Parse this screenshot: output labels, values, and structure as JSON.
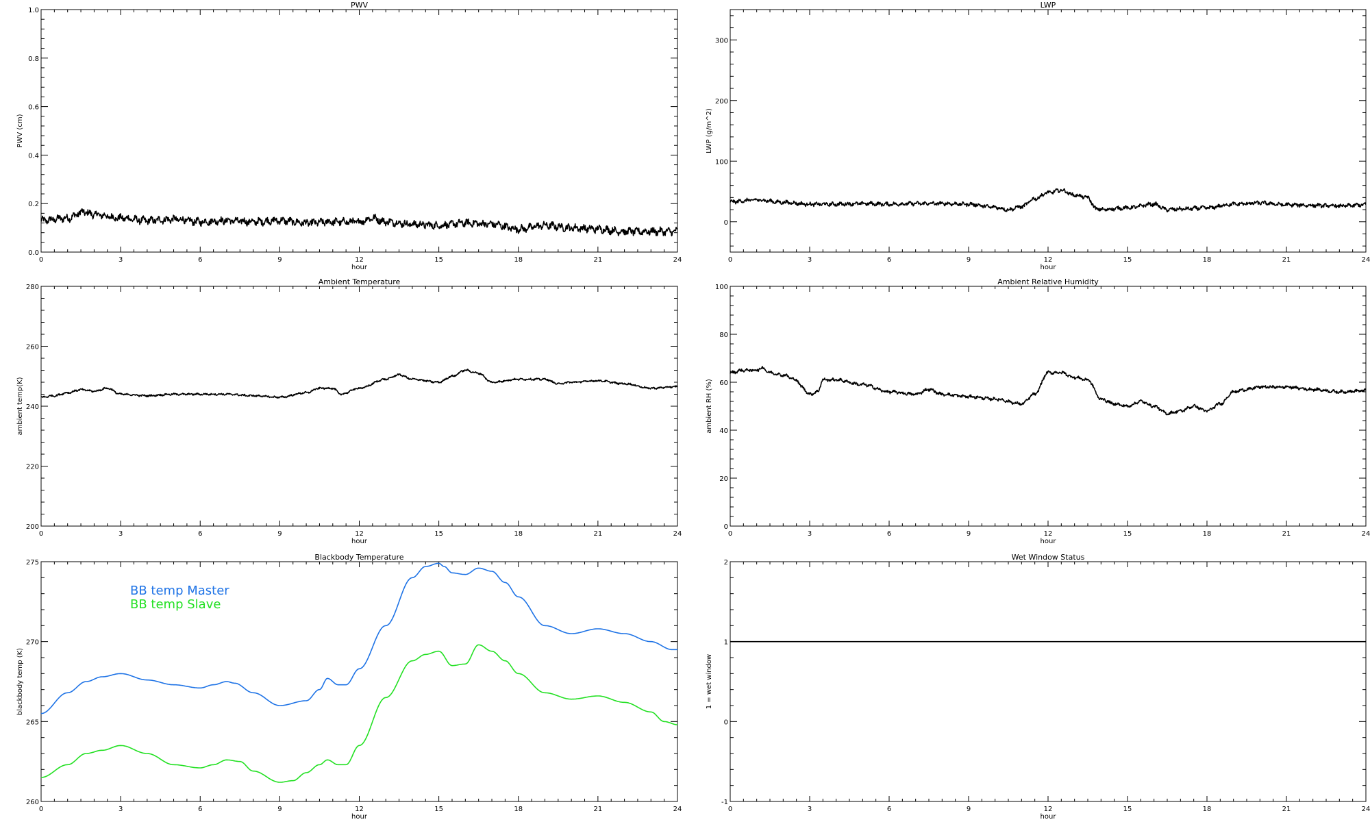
{
  "colors": {
    "axis": "#000000",
    "blue": "#1e73e6",
    "green": "#22e022"
  },
  "chart_data": [
    {
      "type": "line",
      "title": "PWV",
      "xlabel": "hour",
      "ylabel": "PWV (cm)",
      "xlim": [
        0,
        24
      ],
      "ylim": [
        0.0,
        1.0
      ],
      "xticks": [
        "0",
        "3",
        "6",
        "9",
        "12",
        "15",
        "18",
        "21",
        "24"
      ],
      "yticks": [
        "0.0",
        "0.2",
        "0.4",
        "0.6",
        "0.8",
        "1.0"
      ],
      "series": [
        {
          "color": "#000000",
          "noise": 0.012,
          "x": [
            0,
            1,
            1.6,
            2,
            3,
            4,
            5,
            6,
            7,
            8,
            9,
            10,
            11,
            12,
            12.5,
            13,
            14,
            15,
            16,
            17,
            18,
            19,
            20,
            21,
            22,
            23,
            24
          ],
          "y": [
            0.13,
            0.14,
            0.165,
            0.155,
            0.14,
            0.13,
            0.135,
            0.125,
            0.13,
            0.125,
            0.13,
            0.12,
            0.125,
            0.125,
            0.14,
            0.125,
            0.115,
            0.11,
            0.12,
            0.115,
            0.095,
            0.11,
            0.1,
            0.095,
            0.085,
            0.085,
            0.085
          ]
        }
      ]
    },
    {
      "type": "line",
      "title": "LWP",
      "xlabel": "hour",
      "ylabel": "LWP (g/m^2)",
      "xlim": [
        0,
        24
      ],
      "ylim": [
        -50,
        350
      ],
      "xticks": [
        "0",
        "3",
        "6",
        "9",
        "12",
        "15",
        "18",
        "21",
        "24"
      ],
      "yticks": [
        "0",
        "100",
        "200",
        "300"
      ],
      "series": [
        {
          "color": "#000000",
          "noise": 2.5,
          "x": [
            0,
            1,
            2,
            3,
            4,
            5,
            6,
            7,
            8,
            9,
            10,
            10.5,
            11,
            11.5,
            12,
            12.5,
            13,
            13.5,
            13.8,
            14,
            15,
            16,
            16.5,
            17,
            18,
            19,
            20,
            21,
            22,
            23,
            24
          ],
          "y": [
            33,
            36,
            32,
            29,
            29,
            30,
            29,
            30,
            30,
            29,
            24,
            20,
            25,
            38,
            48,
            52,
            44,
            40,
            22,
            20,
            23,
            29,
            20,
            21,
            23,
            29,
            31,
            28,
            27,
            26,
            28
          ]
        }
      ]
    },
    {
      "type": "line",
      "title": "Ambient Temperature",
      "xlabel": "hour",
      "ylabel": "ambient temp(K)",
      "xlim": [
        0,
        24
      ],
      "ylim": [
        200,
        280
      ],
      "xticks": [
        "0",
        "3",
        "6",
        "9",
        "12",
        "15",
        "18",
        "21",
        "24"
      ],
      "yticks": [
        "200",
        "220",
        "240",
        "260",
        "280"
      ],
      "series": [
        {
          "color": "#000000",
          "noise": 0.25,
          "x": [
            0,
            0.5,
            1,
            1.5,
            2,
            2.5,
            3,
            4,
            5,
            6,
            7,
            8,
            9,
            10,
            10.5,
            11,
            11.3,
            12,
            13,
            13.5,
            14,
            15,
            15.5,
            16,
            16.5,
            17,
            18,
            19,
            19.5,
            20,
            21,
            22,
            23,
            24
          ],
          "y": [
            243,
            243.5,
            244.5,
            245.5,
            245,
            246,
            244,
            243.5,
            244,
            244,
            244,
            243.5,
            243,
            244.5,
            246,
            246,
            244,
            246,
            249,
            250.5,
            249,
            248,
            250,
            252,
            251,
            248,
            249,
            249,
            247.5,
            248,
            248.5,
            247.5,
            246,
            246.5
          ]
        }
      ]
    },
    {
      "type": "line",
      "title": "Ambient Relative Humidity",
      "xlabel": "hour",
      "ylabel": "ambient RH (%)",
      "xlim": [
        0,
        24
      ],
      "ylim": [
        0,
        100
      ],
      "xticks": [
        "0",
        "3",
        "6",
        "9",
        "12",
        "15",
        "18",
        "21",
        "24"
      ],
      "yticks": [
        "0",
        "20",
        "40",
        "60",
        "80",
        "100"
      ],
      "series": [
        {
          "color": "#000000",
          "noise": 0.5,
          "x": [
            0,
            0.5,
            1,
            1.2,
            1.5,
            2,
            2.5,
            2.7,
            3,
            3.3,
            3.5,
            4,
            5,
            6,
            7,
            7.5,
            8,
            9,
            10,
            11,
            11.5,
            12,
            12.5,
            13,
            13.5,
            14,
            14.5,
            15,
            15.5,
            16,
            16.5,
            17,
            17.5,
            18,
            18.5,
            19,
            19.5,
            20,
            21,
            22,
            23,
            24
          ],
          "y": [
            64,
            65,
            65,
            66,
            64,
            63,
            61,
            58,
            55,
            56,
            61,
            61,
            59,
            56,
            55,
            57,
            55,
            54,
            53,
            51,
            55,
            64,
            64,
            62,
            61,
            53,
            51,
            50,
            52,
            50,
            47,
            48,
            50,
            48,
            51,
            56,
            57,
            58,
            58,
            57,
            56,
            56.5
          ]
        }
      ]
    },
    {
      "type": "line",
      "title": "Blackbody Temperature",
      "xlabel": "hour",
      "ylabel": "blackbody temp (K)",
      "xlim": [
        0,
        24
      ],
      "ylim": [
        260,
        275
      ],
      "xticks": [
        "0",
        "3",
        "6",
        "9",
        "12",
        "15",
        "18",
        "21",
        "24"
      ],
      "yticks": [
        "260",
        "265",
        "270",
        "275"
      ],
      "series": [
        {
          "name": "BB temp Master",
          "color": "#1e73e6",
          "noise": 0,
          "x": [
            0,
            1,
            1.7,
            2.3,
            3,
            4,
            5,
            6,
            6.5,
            7,
            7.3,
            8,
            9,
            10,
            10.5,
            10.8,
            11.2,
            11.5,
            12,
            13,
            14,
            14.5,
            15,
            15.2,
            15.5,
            16,
            16.5,
            17,
            17.5,
            18,
            19,
            20,
            21,
            22,
            23,
            23.8,
            24
          ],
          "y": [
            265.5,
            266.8,
            267.5,
            267.8,
            268,
            267.6,
            267.3,
            267.1,
            267.3,
            267.5,
            267.4,
            266.8,
            266,
            266.3,
            267,
            267.7,
            267.3,
            267.3,
            268.3,
            271,
            274,
            274.7,
            274.9,
            274.7,
            274.3,
            274.2,
            274.6,
            274.4,
            273.7,
            272.8,
            271,
            270.5,
            270.8,
            270.5,
            270,
            269.5,
            269.5
          ]
        },
        {
          "name": "BB temp Slave",
          "color": "#22e022",
          "noise": 0,
          "x": [
            0,
            1,
            1.7,
            2.3,
            3,
            4,
            5,
            6,
            6.5,
            7,
            7.5,
            8,
            9,
            9.5,
            10,
            10.5,
            10.8,
            11.2,
            11.5,
            12,
            13,
            14,
            14.5,
            15,
            15.5,
            16,
            16.5,
            17,
            17.5,
            18,
            19,
            20,
            21,
            22,
            23,
            23.5,
            24
          ],
          "y": [
            261.5,
            262.3,
            263,
            263.2,
            263.5,
            263,
            262.3,
            262.1,
            262.3,
            262.6,
            262.5,
            261.9,
            261.2,
            261.3,
            261.8,
            262.3,
            262.6,
            262.3,
            262.3,
            263.5,
            266.5,
            268.8,
            269.2,
            269.4,
            268.5,
            268.6,
            269.8,
            269.4,
            268.8,
            268,
            266.8,
            266.4,
            266.6,
            266.2,
            265.6,
            265,
            264.8
          ]
        }
      ]
    },
    {
      "type": "line",
      "title": "Wet Window Status",
      "xlabel": "hour",
      "ylabel": "1 = wet window",
      "xlim": [
        0,
        24
      ],
      "ylim": [
        -1,
        2
      ],
      "xticks": [
        "0",
        "3",
        "6",
        "9",
        "12",
        "15",
        "18",
        "21",
        "24"
      ],
      "yticks": [
        "-1",
        "0",
        "1",
        "2"
      ],
      "series": [
        {
          "color": "#000000",
          "noise": 0,
          "x": [
            0,
            24
          ],
          "y": [
            1,
            1
          ]
        }
      ]
    }
  ]
}
